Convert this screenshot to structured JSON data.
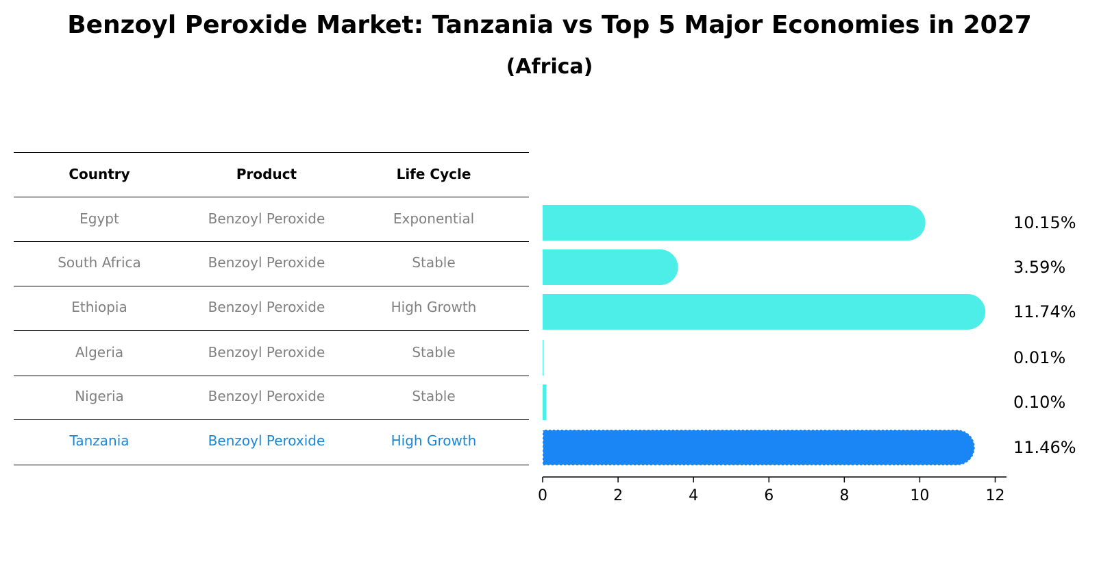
{
  "title": "Benzoyl Peroxide Market: Tanzania vs Top 5 Major Economies in 2027",
  "subtitle": "(Africa)",
  "table": {
    "headers": [
      "Country",
      "Product",
      "Life Cycle"
    ],
    "rows": [
      {
        "country": "Egypt",
        "product": "Benzoyl Peroxide",
        "life_cycle": "Exponential"
      },
      {
        "country": "South Africa",
        "product": "Benzoyl Peroxide",
        "life_cycle": "Stable"
      },
      {
        "country": "Ethiopia",
        "product": "Benzoyl Peroxide",
        "life_cycle": "High Growth"
      },
      {
        "country": "Algeria",
        "product": "Benzoyl Peroxide",
        "life_cycle": "Stable"
      },
      {
        "country": "Nigeria",
        "product": "Benzoyl Peroxide",
        "life_cycle": "Stable"
      },
      {
        "country": "Tanzania",
        "product": "Benzoyl Peroxide",
        "life_cycle": "High Growth"
      }
    ]
  },
  "colors": {
    "bar": "#4dede8",
    "highlight_bar": "#1a86f5",
    "highlight_text": "#1a86d4",
    "muted_text": "#808080"
  },
  "chart_data": {
    "type": "bar",
    "orientation": "horizontal",
    "categories": [
      "Egypt",
      "South Africa",
      "Ethiopia",
      "Algeria",
      "Nigeria",
      "Tanzania"
    ],
    "values": [
      10.15,
      3.59,
      11.74,
      0.01,
      0.1,
      11.46
    ],
    "value_labels": [
      "10.15%",
      "3.59%",
      "11.74%",
      "0.01%",
      "0.10%",
      "11.46%"
    ],
    "highlight": "Tanzania",
    "xlim": [
      0,
      12.3
    ],
    "xticks": [
      0,
      2,
      4,
      6,
      8,
      10,
      12
    ],
    "xtick_labels": [
      "0",
      "2",
      "4",
      "6",
      "8",
      "10",
      "12"
    ],
    "xlabel": "",
    "ylabel": "",
    "grid": false
  }
}
